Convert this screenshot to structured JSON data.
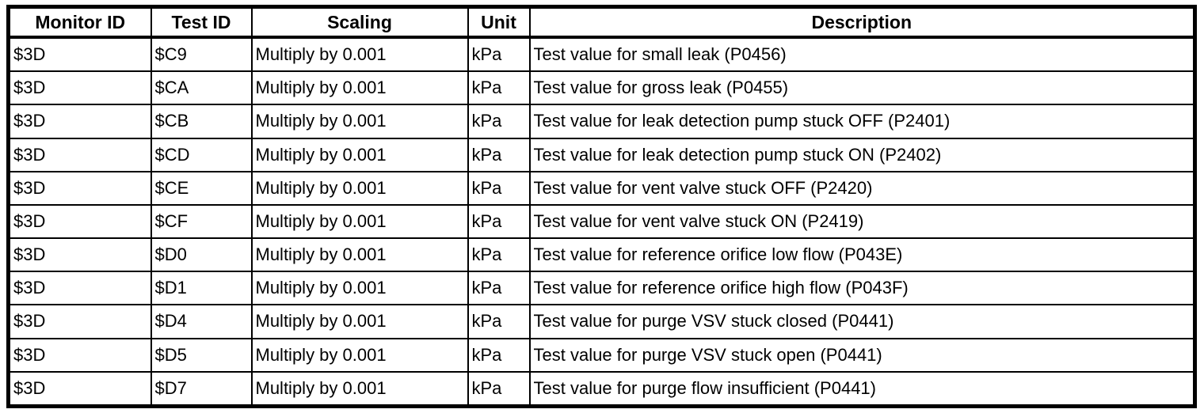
{
  "colors": {
    "background": "#ffffff",
    "border": "#000000",
    "text": "#000000"
  },
  "table": {
    "columns": [
      "Monitor ID",
      "Test ID",
      "Scaling",
      "Unit",
      "Description"
    ],
    "rows": [
      {
        "monitor_id": "$3D",
        "test_id": "$C9",
        "scaling": "Multiply by 0.001",
        "unit": "kPa",
        "description": "Test value for small leak (P0456)"
      },
      {
        "monitor_id": "$3D",
        "test_id": "$CA",
        "scaling": "Multiply by 0.001",
        "unit": "kPa",
        "description": "Test value for gross leak (P0455)"
      },
      {
        "monitor_id": "$3D",
        "test_id": "$CB",
        "scaling": "Multiply by 0.001",
        "unit": "kPa",
        "description": "Test value for leak detection pump stuck OFF (P2401)"
      },
      {
        "monitor_id": "$3D",
        "test_id": "$CD",
        "scaling": "Multiply by 0.001",
        "unit": "kPa",
        "description": "Test value for leak detection pump stuck ON (P2402)"
      },
      {
        "monitor_id": "$3D",
        "test_id": "$CE",
        "scaling": "Multiply by 0.001",
        "unit": "kPa",
        "description": "Test value for vent valve stuck OFF (P2420)"
      },
      {
        "monitor_id": "$3D",
        "test_id": "$CF",
        "scaling": "Multiply by 0.001",
        "unit": "kPa",
        "description": "Test value for vent valve stuck ON (P2419)"
      },
      {
        "monitor_id": "$3D",
        "test_id": "$D0",
        "scaling": "Multiply by 0.001",
        "unit": "kPa",
        "description": "Test value for reference orifice low flow (P043E)"
      },
      {
        "monitor_id": "$3D",
        "test_id": "$D1",
        "scaling": "Multiply by 0.001",
        "unit": "kPa",
        "description": "Test value for reference orifice high flow (P043F)"
      },
      {
        "monitor_id": "$3D",
        "test_id": "$D4",
        "scaling": "Multiply by 0.001",
        "unit": "kPa",
        "description": "Test value for purge VSV stuck closed (P0441)"
      },
      {
        "monitor_id": "$3D",
        "test_id": "$D5",
        "scaling": "Multiply by 0.001",
        "unit": "kPa",
        "description": "Test value for purge VSV stuck open (P0441)"
      },
      {
        "monitor_id": "$3D",
        "test_id": "$D7",
        "scaling": "Multiply by 0.001",
        "unit": "kPa",
        "description": "Test value for purge flow insufficient (P0441)"
      }
    ]
  }
}
